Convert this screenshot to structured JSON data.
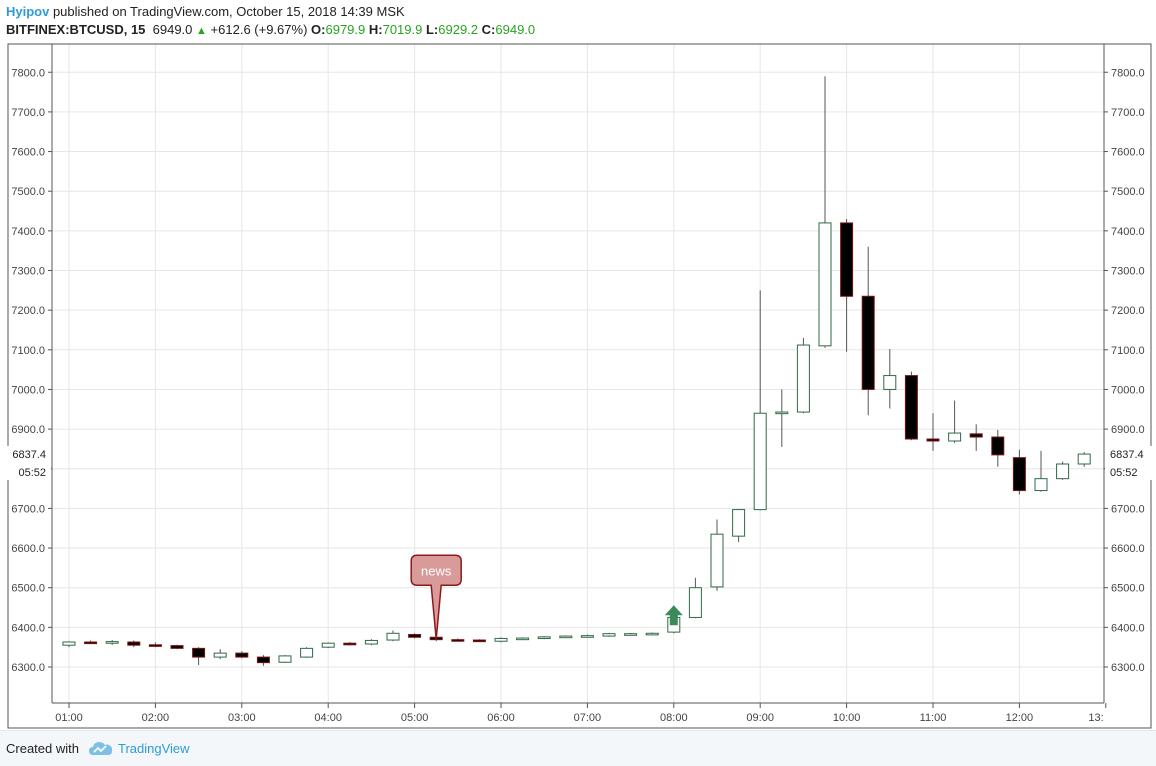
{
  "header": {
    "author": "Hyipov",
    "published_text": " published on TradingView.com, October 15, 2018 14:39 MSK",
    "symbol": "BITFINEX:BTCUSD, 15",
    "last": "6949.0",
    "change": "+612.6 (+9.67%)",
    "o_label": "O:",
    "o_value": "6979.9",
    "h_label": "H:",
    "h_value": "7019.9",
    "l_label": "L:",
    "l_value": "6929.2",
    "c_label": "C:",
    "c_value": "6949.0"
  },
  "footer": {
    "created_with": "Created with",
    "brand": "TradingView"
  },
  "colors": {
    "up_border": "#2f6a45",
    "down_fill": "#000000",
    "down_border": "#7a1515",
    "news_fill": "#d99a9a",
    "news_border": "#8e1b1b",
    "arrow": "#3a8a5a",
    "grid": "#e6e6e6"
  },
  "chart_data": {
    "type": "candlestick",
    "title": "",
    "xlabel": "",
    "ylabel": "",
    "ylim": [
      6205,
      7900
    ],
    "y_ticks": [
      "6300.0",
      "6400.0",
      "6500.0",
      "6600.0",
      "6700.0",
      "6800.0",
      "6900.0",
      "7000.0",
      "7100.0",
      "7200.0",
      "7300.0",
      "7400.0",
      "7500.0",
      "7600.0",
      "7700.0",
      "7800.0"
    ],
    "x_ticks": [
      "01:00",
      "02:00",
      "03:00",
      "04:00",
      "05:00",
      "06:00",
      "07:00",
      "08:00",
      "09:00",
      "10:00",
      "11:00",
      "12:00",
      "13:"
    ],
    "price_label": "6837.4",
    "countdown_label": "05:52",
    "interval_minutes": 15,
    "first_time": "01:00",
    "candles": [
      {
        "o": 6355,
        "h": 6365,
        "l": 6350,
        "c": 6363
      },
      {
        "o": 6363,
        "h": 6367,
        "l": 6358,
        "c": 6360
      },
      {
        "o": 6360,
        "h": 6368,
        "l": 6356,
        "c": 6364
      },
      {
        "o": 6363,
        "h": 6367,
        "l": 6350,
        "c": 6355
      },
      {
        "o": 6356,
        "h": 6362,
        "l": 6350,
        "c": 6354
      },
      {
        "o": 6354,
        "h": 6356,
        "l": 6345,
        "c": 6347
      },
      {
        "o": 6347,
        "h": 6350,
        "l": 6305,
        "c": 6325
      },
      {
        "o": 6325,
        "h": 6345,
        "l": 6320,
        "c": 6335
      },
      {
        "o": 6335,
        "h": 6340,
        "l": 6322,
        "c": 6325
      },
      {
        "o": 6325,
        "h": 6330,
        "l": 6303,
        "c": 6311
      },
      {
        "o": 6312,
        "h": 6330,
        "l": 6310,
        "c": 6328
      },
      {
        "o": 6325,
        "h": 6350,
        "l": 6323,
        "c": 6347
      },
      {
        "o": 6350,
        "h": 6362,
        "l": 6348,
        "c": 6360
      },
      {
        "o": 6360,
        "h": 6363,
        "l": 6356,
        "c": 6358
      },
      {
        "o": 6358,
        "h": 6370,
        "l": 6355,
        "c": 6367
      },
      {
        "o": 6368,
        "h": 6392,
        "l": 6365,
        "c": 6385
      },
      {
        "o": 6382,
        "h": 6385,
        "l": 6372,
        "c": 6375
      },
      {
        "o": 6375,
        "h": 6378,
        "l": 6365,
        "c": 6369
      },
      {
        "o": 6369,
        "h": 6372,
        "l": 6365,
        "c": 6368
      },
      {
        "o": 6368,
        "h": 6370,
        "l": 6364,
        "c": 6366
      },
      {
        "o": 6365,
        "h": 6375,
        "l": 6362,
        "c": 6372
      },
      {
        "o": 6371,
        "h": 6375,
        "l": 6368,
        "c": 6373
      },
      {
        "o": 6372,
        "h": 6378,
        "l": 6370,
        "c": 6376
      },
      {
        "o": 6377,
        "h": 6380,
        "l": 6374,
        "c": 6378
      },
      {
        "o": 6378,
        "h": 6382,
        "l": 6375,
        "c": 6379
      },
      {
        "o": 6378,
        "h": 6386,
        "l": 6376,
        "c": 6384
      },
      {
        "o": 6383,
        "h": 6386,
        "l": 6380,
        "c": 6384
      },
      {
        "o": 6384,
        "h": 6387,
        "l": 6381,
        "c": 6385
      },
      {
        "o": 6388,
        "h": 6428,
        "l": 6385,
        "c": 6425
      },
      {
        "o": 6425,
        "h": 6525,
        "l": 6423,
        "c": 6500
      },
      {
        "o": 6502,
        "h": 6672,
        "l": 6492,
        "c": 6635
      },
      {
        "o": 6630,
        "h": 6698,
        "l": 6615,
        "c": 6697
      },
      {
        "o": 6697,
        "h": 7250,
        "l": 6695,
        "c": 6940
      },
      {
        "o": 6940,
        "h": 7000,
        "l": 6855,
        "c": 6943
      },
      {
        "o": 6943,
        "h": 7130,
        "l": 6940,
        "c": 7112
      },
      {
        "o": 7110,
        "h": 7790,
        "l": 7105,
        "c": 7420
      },
      {
        "o": 7420,
        "h": 7430,
        "l": 7095,
        "c": 7235
      },
      {
        "o": 7235,
        "h": 7360,
        "l": 6935,
        "c": 7000
      },
      {
        "o": 7000,
        "h": 7102,
        "l": 6952,
        "c": 7035
      },
      {
        "o": 7035,
        "h": 7045,
        "l": 6872,
        "c": 6875
      },
      {
        "o": 6875,
        "h": 6940,
        "l": 6845,
        "c": 6870
      },
      {
        "o": 6870,
        "h": 6972,
        "l": 6865,
        "c": 6890
      },
      {
        "o": 6888,
        "h": 6912,
        "l": 6845,
        "c": 6880
      },
      {
        "o": 6880,
        "h": 6898,
        "l": 6805,
        "c": 6835
      },
      {
        "o": 6828,
        "h": 6848,
        "l": 6735,
        "c": 6745
      },
      {
        "o": 6745,
        "h": 6845,
        "l": 6742,
        "c": 6775
      },
      {
        "o": 6775,
        "h": 6818,
        "l": 6772,
        "c": 6812
      },
      {
        "o": 6812,
        "h": 6842,
        "l": 6805,
        "c": 6837
      }
    ],
    "annotations": [
      {
        "type": "flag",
        "text": "news",
        "candle_index": 17
      },
      {
        "type": "arrow_up",
        "candle_index": 28
      }
    ]
  }
}
